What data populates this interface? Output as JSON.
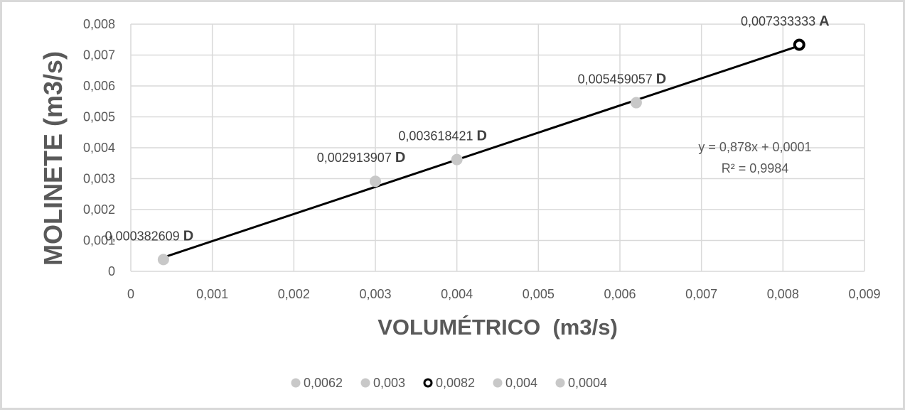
{
  "chart_data": {
    "type": "scatter",
    "xlabel": "VOLUMÉTRICO  (m3/s)",
    "ylabel": "MOLINETE (m3/s)",
    "xlim": [
      0,
      0.009
    ],
    "ylim": [
      0,
      0.008
    ],
    "x_ticks": [
      "0",
      "0,001",
      "0,002",
      "0,003",
      "0,004",
      "0,005",
      "0,006",
      "0,007",
      "0,008",
      "0,009"
    ],
    "y_ticks": [
      "0",
      "0,001",
      "0,002",
      "0,003",
      "0,004",
      "0,005",
      "0,006",
      "0,007",
      "0,008"
    ],
    "grid": true,
    "legend_position": "bottom",
    "series": [
      {
        "name": "0,0062",
        "x": 0.0062,
        "y": 0.005459057,
        "label": "0,005459057",
        "letter": "D",
        "color": "#c8c8c8",
        "style": "filled"
      },
      {
        "name": "0,003",
        "x": 0.003,
        "y": 0.002913907,
        "label": "0,002913907",
        "letter": "D",
        "color": "#c8c8c8",
        "style": "filled"
      },
      {
        "name": "0,0082",
        "x": 0.0082,
        "y": 0.007333333,
        "label": "0,007333333",
        "letter": "A",
        "color": "#000000",
        "style": "ring"
      },
      {
        "name": "0,004",
        "x": 0.004,
        "y": 0.003618421,
        "label": "0,003618421",
        "letter": "D",
        "color": "#c8c8c8",
        "style": "filled"
      },
      {
        "name": "0,0004",
        "x": 0.0004,
        "y": 0.000382609,
        "label": "0,000382609",
        "letter": "D",
        "color": "#c8c8c8",
        "style": "filled"
      }
    ],
    "trendline": {
      "equation": "y = 0,878x + 0,0001",
      "r_squared": "R² = 0,9984",
      "slope": 0.878,
      "intercept": 0.0001,
      "x_range": [
        0.0004,
        0.0082
      ],
      "color": "#000000"
    }
  }
}
